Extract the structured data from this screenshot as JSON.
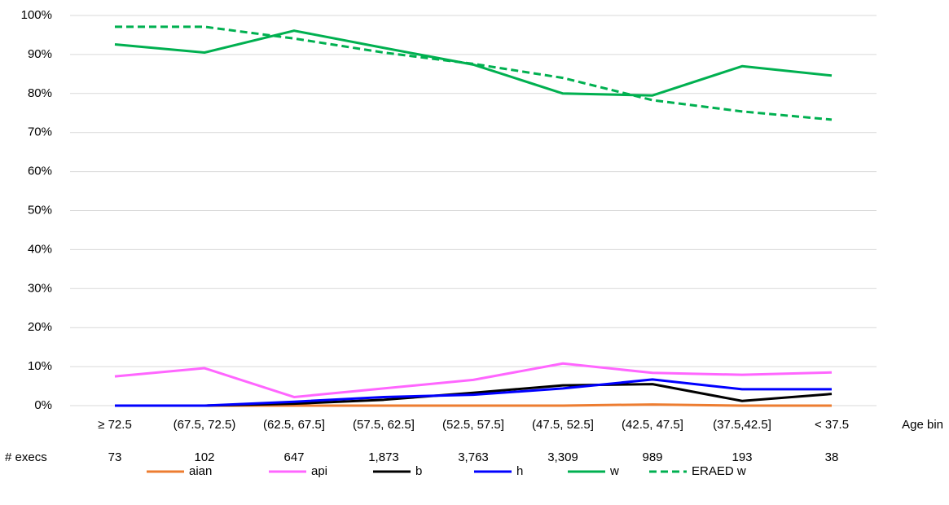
{
  "chart_data": {
    "type": "line",
    "x_label": "Age bin",
    "categories": [
      "≥ 72.5",
      "(67.5, 72.5)",
      "(62.5, 67.5]",
      "(57.5, 62.5]",
      "(52.5, 57.5]",
      "(47.5, 52.5]",
      "(42.5, 47.5]",
      "(37.5,42.5]",
      "< 37.5"
    ],
    "row_label": "# execs",
    "row_values": [
      "73",
      "102",
      "647",
      "1,873",
      "3,763",
      "3,309",
      "989",
      "193",
      "38"
    ],
    "ylim": [
      0,
      100
    ],
    "yticks": [
      {
        "value": 0,
        "label": "0%"
      },
      {
        "value": 10,
        "label": "10%"
      },
      {
        "value": 20,
        "label": "20%"
      },
      {
        "value": 30,
        "label": "30%"
      },
      {
        "value": 40,
        "label": "40%"
      },
      {
        "value": 50,
        "label": "50%"
      },
      {
        "value": 60,
        "label": "60%"
      },
      {
        "value": 70,
        "label": "70%"
      },
      {
        "value": 80,
        "label": "80%"
      },
      {
        "value": 90,
        "label": "90%"
      },
      {
        "value": 100,
        "label": "100%"
      }
    ],
    "grid": true,
    "legend": "bottom",
    "series": [
      {
        "name": "aian",
        "color": "#ed7d31",
        "values": [
          0,
          0,
          0,
          0,
          0,
          0,
          0.3,
          0,
          0
        ]
      },
      {
        "name": "api",
        "color": "#ff66ff",
        "values": [
          7.5,
          9.6,
          2.2,
          4.4,
          6.6,
          10.8,
          8.4,
          7.9,
          8.5
        ]
      },
      {
        "name": "b",
        "color": "#000000",
        "values": [
          0,
          0,
          0.5,
          1.5,
          3.3,
          5.2,
          5.5,
          1.2,
          3.0
        ]
      },
      {
        "name": "h",
        "color": "#0000ff",
        "values": [
          0,
          0,
          1.0,
          2.2,
          2.8,
          4.4,
          6.7,
          4.2,
          4.2
        ]
      },
      {
        "name": "w",
        "color": "#00b050",
        "values": [
          92.6,
          90.5,
          96.1,
          91.7,
          87.4,
          80.0,
          79.5,
          87.0,
          84.6
        ]
      },
      {
        "name": "ERAED w",
        "color": "#00b050",
        "dashed": true,
        "values": [
          97.1,
          97.1,
          94.1,
          90.5,
          87.6,
          84.0,
          78.3,
          75.4,
          73.3
        ]
      }
    ]
  }
}
